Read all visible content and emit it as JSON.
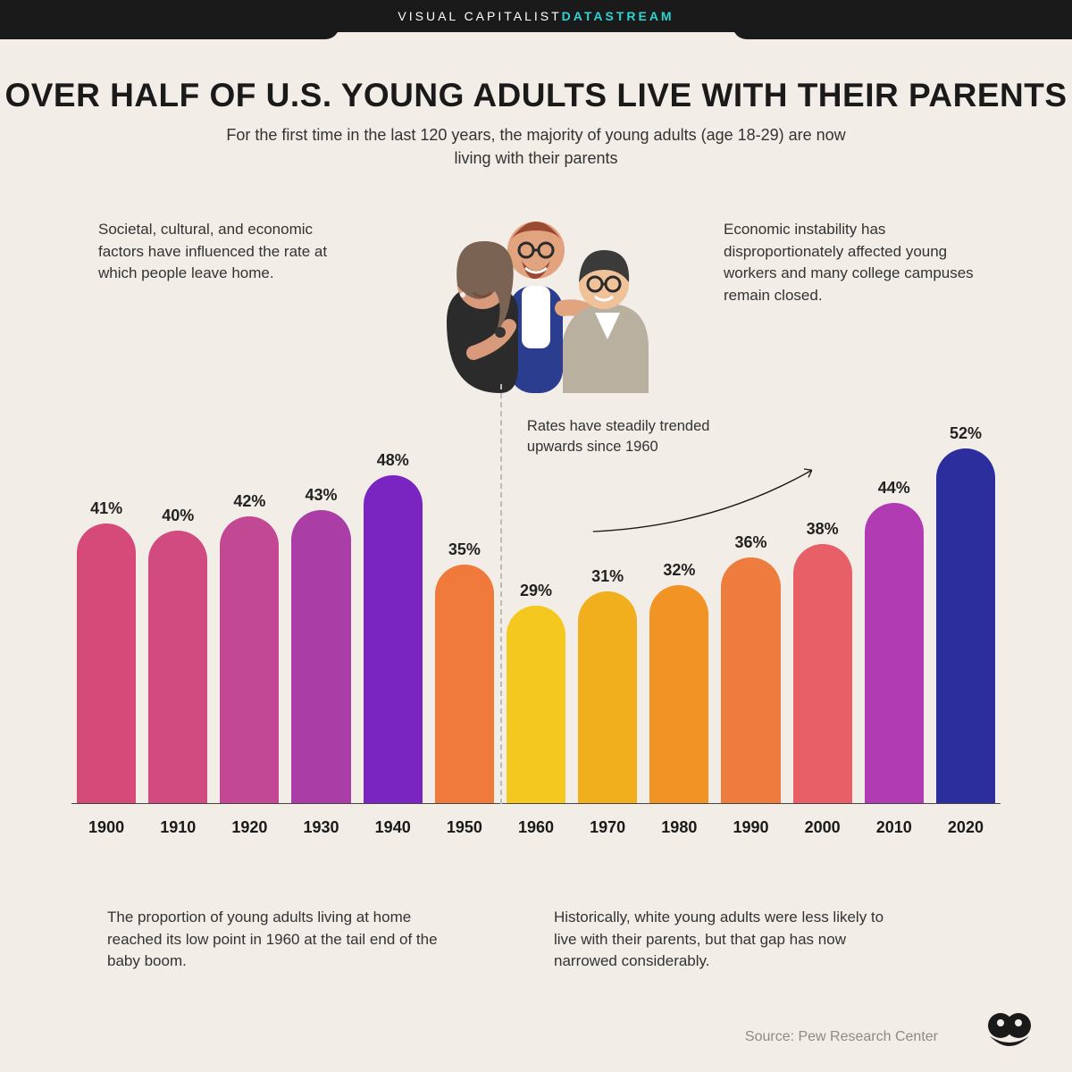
{
  "header": {
    "brand_prefix": "VISUAL CAPITALIST ",
    "brand_accent": "DATASTREAM"
  },
  "headline": "OVER HALF OF U.S. YOUNG ADULTS LIVE WITH THEIR PARENTS",
  "subhead": "For the first time in the last 120 years, the majority of young adults (age 18-29) are now living with their parents",
  "blurb_left": "Societal, cultural, and economic factors have influenced the rate at which people leave home.",
  "blurb_right": "Economic instability has disproportionately affected young workers and many college campuses remain closed.",
  "trend_note": "Rates have steadily trended upwards since 1960",
  "foot_left": "The proportion of young adults living at home reached its low point in 1960 at the tail end of the baby boom.",
  "foot_right": "Historically, white young adults were less likely to live with their parents, but that gap has now narrowed considerably.",
  "source": "Source: Pew Research Center",
  "chart": {
    "type": "bar",
    "value_axis_max": 55,
    "bar_radius": 40,
    "divider_after_index": 5,
    "background_color": "#f2ede6",
    "axis_color": "#444444",
    "label_fontsize": 18,
    "bars": [
      {
        "year": "1900",
        "value": 41,
        "color": "#d64a7a"
      },
      {
        "year": "1910",
        "value": 40,
        "color": "#d14a80"
      },
      {
        "year": "1920",
        "value": 42,
        "color": "#c24894"
      },
      {
        "year": "1930",
        "value": 43,
        "color": "#aa3ea6"
      },
      {
        "year": "1940",
        "value": 48,
        "color": "#7a25c2"
      },
      {
        "year": "1950",
        "value": 35,
        "color": "#ef7a3c"
      },
      {
        "year": "1960",
        "value": 29,
        "color": "#f4c81e"
      },
      {
        "year": "1970",
        "value": 31,
        "color": "#f2af1d"
      },
      {
        "year": "1980",
        "value": 32,
        "color": "#f29425"
      },
      {
        "year": "1990",
        "value": 36,
        "color": "#ee7c3e"
      },
      {
        "year": "2000",
        "value": 38,
        "color": "#e75f67"
      },
      {
        "year": "2010",
        "value": 44,
        "color": "#b03bb3"
      },
      {
        "year": "2020",
        "value": 52,
        "color": "#2c2e9e"
      }
    ]
  },
  "illustration": {
    "skin1": "#d89a7a",
    "skin2": "#e2a47e",
    "skin3": "#f0c29a",
    "hair1": "#7a6352",
    "hair2": "#9a4a30",
    "hair3": "#3b3b3b",
    "shirt1": "#2b2b2b",
    "shirt2": "#2a3d8f",
    "shirt2_inner": "#ffffff",
    "shirt3": "#b9b0a0",
    "glasses": "#2b2b2b"
  }
}
